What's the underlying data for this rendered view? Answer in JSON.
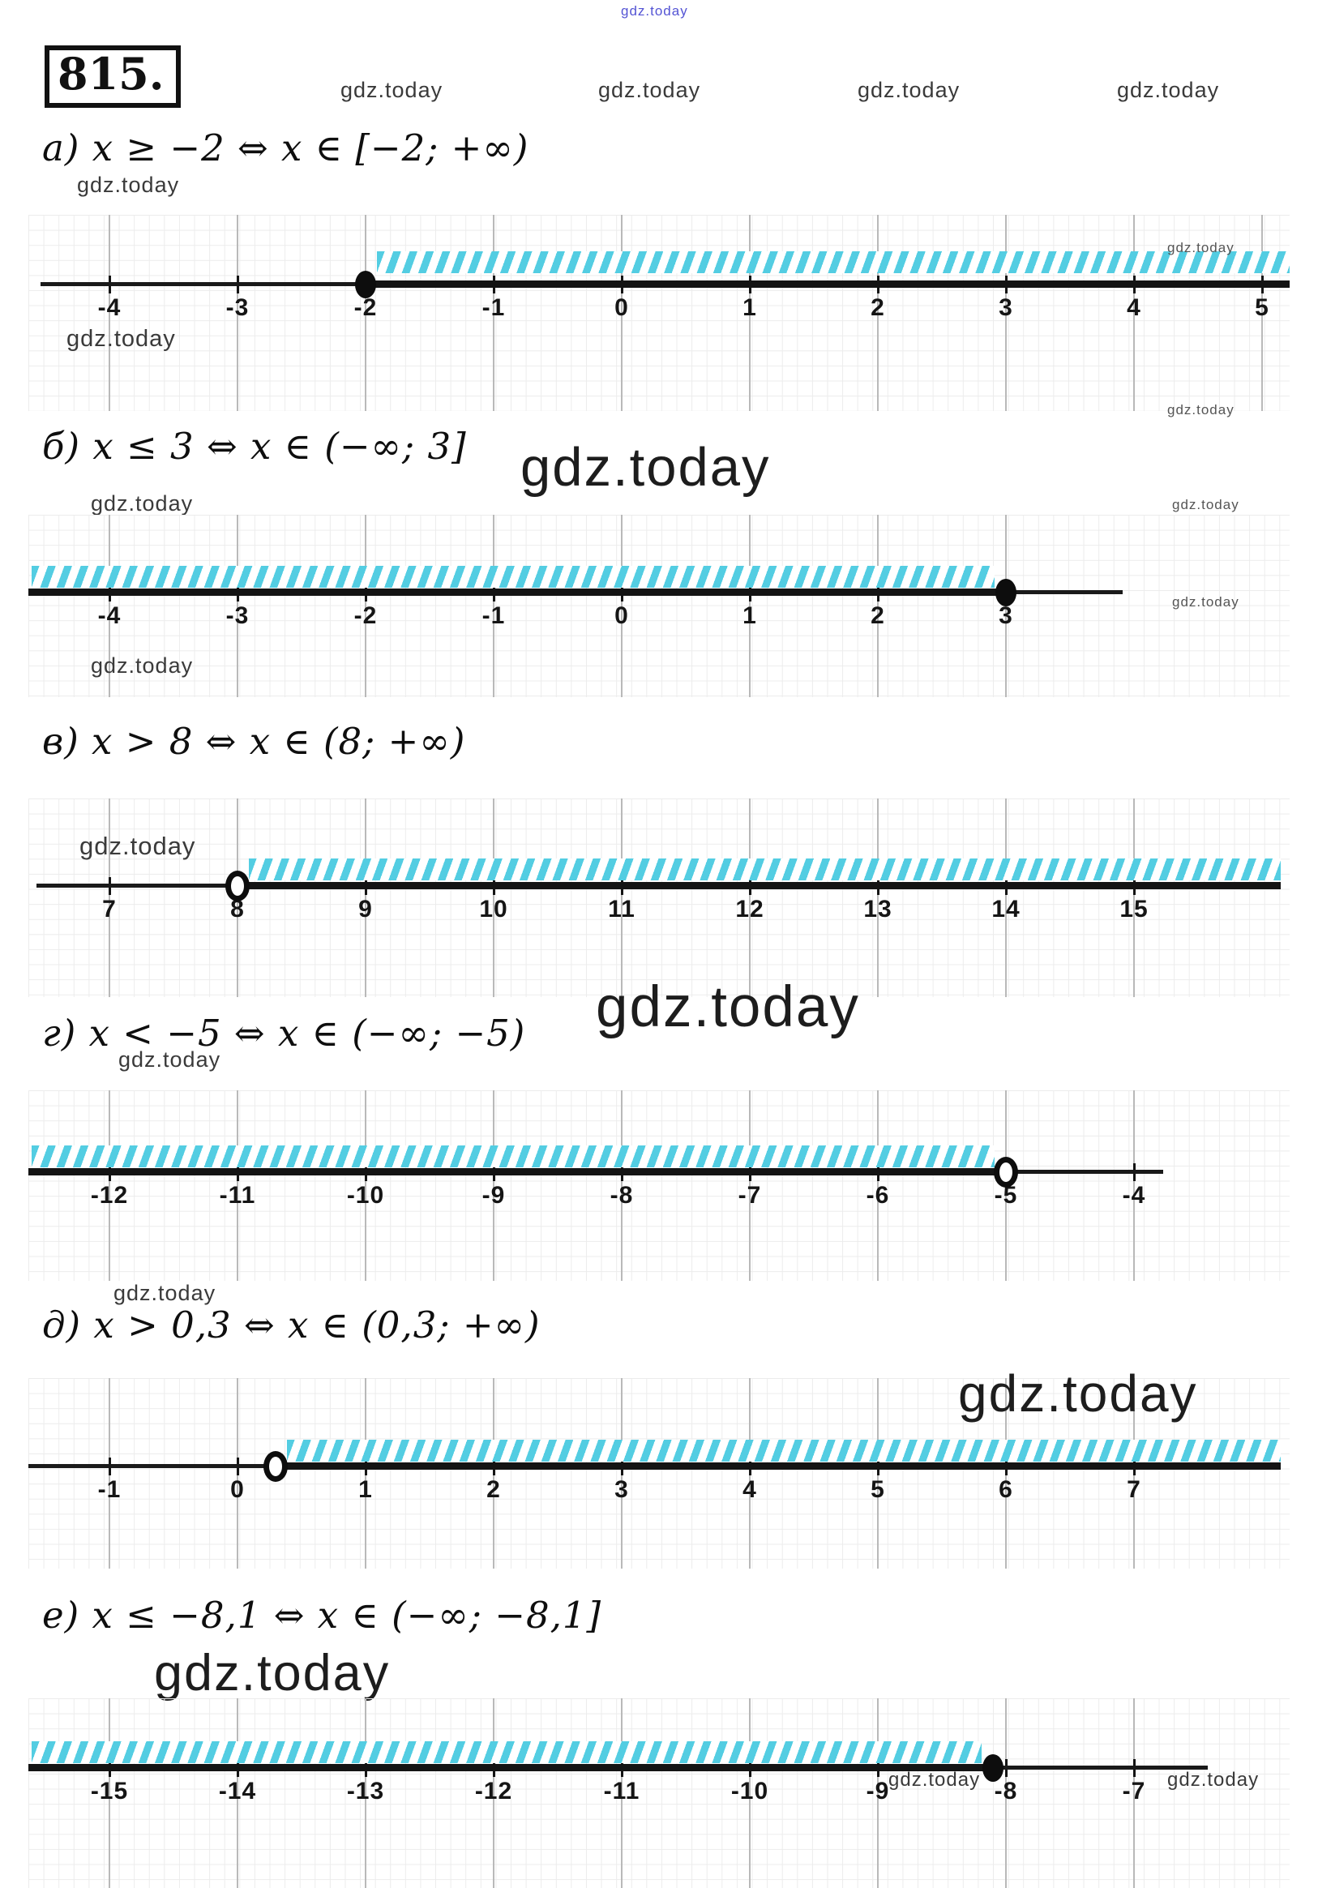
{
  "watermark": "gdz.today",
  "header": {
    "problem_number": "815."
  },
  "colors": {
    "hatch": "#53cde2",
    "axis": "#1a1a1a",
    "watermark_blue": "#5454d4"
  },
  "parts": [
    {
      "id": "a",
      "heading": "а) x ≥ −2  ⇔  x ∈ [−2; +∞)",
      "numberline": {
        "type": "numberline",
        "min": -4,
        "max": 5,
        "tick_labels": [
          "-4",
          "-3",
          "-2",
          "-1",
          "0",
          "1",
          "2",
          "3",
          "4",
          "5"
        ],
        "point": -2,
        "endpoint": "closed",
        "ray": "right"
      }
    },
    {
      "id": "b",
      "heading": "б) x ≤ 3  ⇔  x ∈ (−∞; 3]",
      "numberline": {
        "type": "numberline",
        "min": -4,
        "max": 3,
        "tick_labels": [
          "-4",
          "-3",
          "-2",
          "-1",
          "0",
          "1",
          "2",
          "3"
        ],
        "point": 3,
        "endpoint": "closed",
        "ray": "left"
      }
    },
    {
      "id": "c",
      "heading": "в)  x > 8  ⇔ x ∈ (8; +∞)",
      "numberline": {
        "type": "numberline",
        "min": 7,
        "max": 15,
        "tick_labels": [
          "7",
          "8",
          "9",
          "10",
          "11",
          "12",
          "13",
          "14",
          "15"
        ],
        "point": 8,
        "endpoint": "open",
        "ray": "right"
      }
    },
    {
      "id": "d",
      "heading": "г) x < −5 ⇔ x ∈ (−∞; −5)",
      "numberline": {
        "type": "numberline",
        "min": -12,
        "max": -4,
        "tick_labels": [
          "-12",
          "-11",
          "-10",
          "-9",
          "-8",
          "-7",
          "-6",
          "-5",
          "-4"
        ],
        "point": -5,
        "endpoint": "open",
        "ray": "left"
      }
    },
    {
      "id": "e",
      "heading": "д) x > 0,3 ⇔ x ∈ (0,3; +∞)",
      "numberline": {
        "type": "numberline",
        "min": -1,
        "max": 7,
        "tick_labels": [
          "-1",
          "0",
          "1",
          "2",
          "3",
          "4",
          "5",
          "6",
          "7"
        ],
        "point": 0.3,
        "endpoint": "open",
        "ray": "right"
      }
    },
    {
      "id": "f",
      "heading": "е)  x ≤ −8,1 ⇔ x ∈ (−∞; −8,1]",
      "numberline": {
        "type": "numberline",
        "min": -15,
        "max": -7,
        "tick_labels": [
          "-15",
          "-14",
          "-13",
          "-12",
          "-11",
          "-10",
          "-9",
          "-8",
          "-7"
        ],
        "point": -8.1,
        "endpoint": "closed",
        "ray": "left"
      }
    }
  ]
}
